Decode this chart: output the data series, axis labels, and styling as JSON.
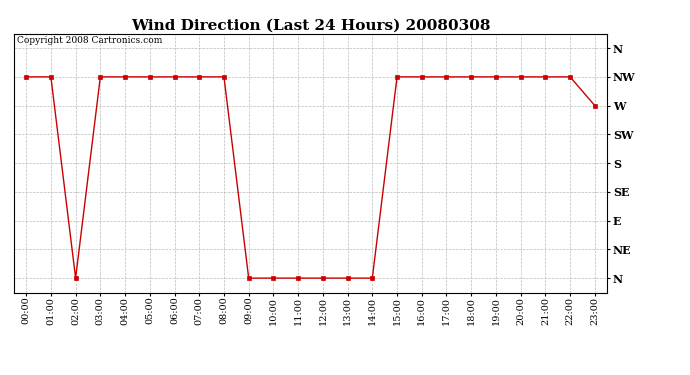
{
  "title": "Wind Direction (Last 24 Hours) 20080308",
  "copyright": "Copyright 2008 Cartronics.com",
  "background_color": "#ffffff",
  "line_color": "#cc0000",
  "marker_color": "#cc0000",
  "grid_color": "#bbbbbb",
  "ytick_labels": [
    "N",
    "NE",
    "E",
    "SE",
    "S",
    "SW",
    "W",
    "NW",
    "N"
  ],
  "ytick_values": [
    0,
    1,
    2,
    3,
    4,
    5,
    6,
    7,
    8
  ],
  "xtick_labels": [
    "00:00",
    "01:00",
    "02:00",
    "03:00",
    "04:00",
    "05:00",
    "06:00",
    "07:00",
    "08:00",
    "09:00",
    "10:00",
    "11:00",
    "12:00",
    "13:00",
    "14:00",
    "15:00",
    "16:00",
    "17:00",
    "18:00",
    "19:00",
    "20:00",
    "21:00",
    "22:00",
    "23:00"
  ],
  "hours": [
    0,
    1,
    2,
    3,
    4,
    5,
    6,
    7,
    8,
    9,
    10,
    11,
    12,
    13,
    14,
    15,
    16,
    17,
    18,
    19,
    20,
    21,
    22,
    23
  ],
  "wind_values": [
    7,
    7,
    0,
    7,
    7,
    7,
    7,
    7,
    7,
    0,
    0,
    0,
    0,
    0,
    0,
    7,
    7,
    7,
    7,
    7,
    7,
    7,
    7,
    6
  ],
  "ylim": [
    -0.5,
    8.5
  ],
  "xlim": [
    -0.5,
    23.5
  ],
  "title_fontsize": 11,
  "ytick_fontsize": 8,
  "xtick_fontsize": 7,
  "copyright_fontsize": 6.5
}
